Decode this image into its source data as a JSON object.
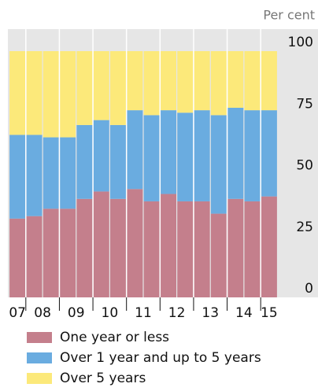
{
  "chart_data": {
    "type": "stacked_bar",
    "unit_label": "Per cent",
    "year_labels": [
      "07",
      "08",
      "09",
      "10",
      "11",
      "12",
      "13",
      "14",
      "15"
    ],
    "series": [
      {
        "name": "One year or less",
        "color": "#c47f8c",
        "values": [
          32,
          33,
          36,
          36,
          40,
          43,
          40,
          44,
          39,
          42,
          39,
          39,
          34,
          40,
          39,
          41
        ]
      },
      {
        "name": "Over 1 year and up to 5 years",
        "color": "#6aace0",
        "values": [
          34,
          33,
          29,
          29,
          30,
          29,
          30,
          32,
          35,
          34,
          36,
          37,
          40,
          37,
          37,
          35
        ]
      },
      {
        "name": "Over 5 years",
        "color": "#fce97a",
        "values": [
          34,
          34,
          35,
          35,
          30,
          28,
          30,
          24,
          26,
          24,
          25,
          24,
          26,
          23,
          24,
          24
        ]
      }
    ],
    "ylim": [
      0,
      100
    ],
    "yticks": [
      0,
      25,
      50,
      75,
      100
    ]
  }
}
